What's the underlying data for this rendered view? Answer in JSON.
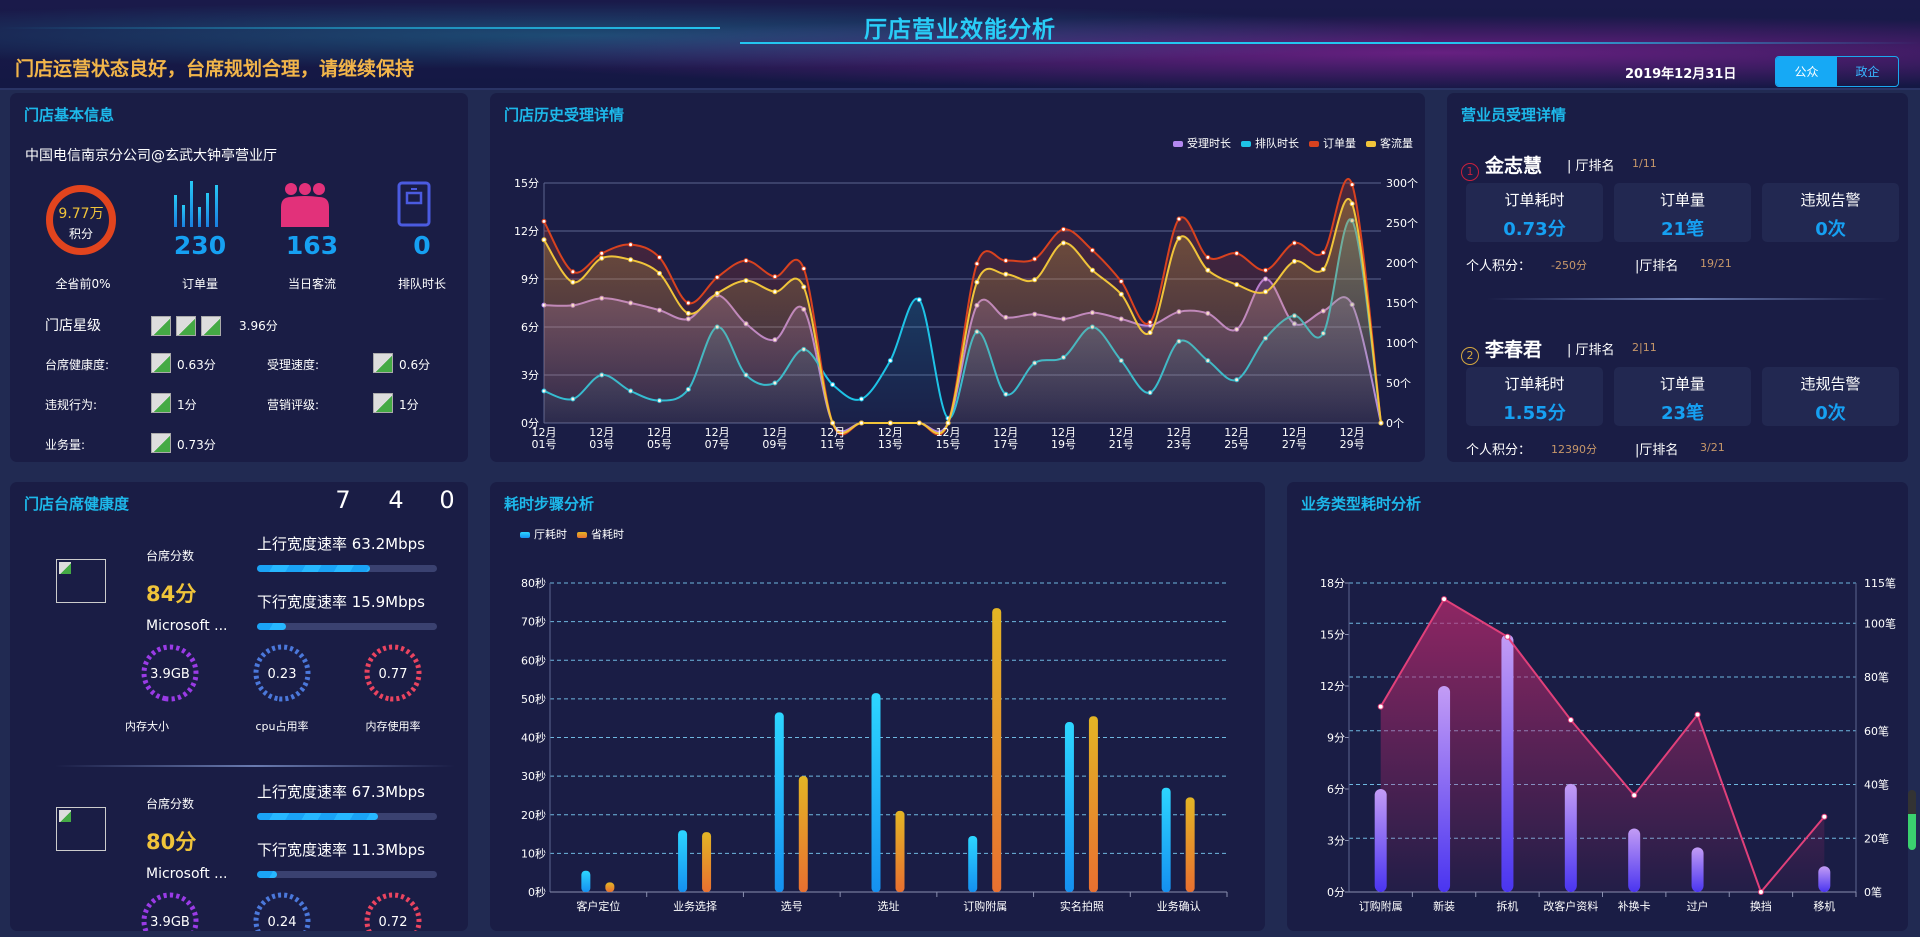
{
  "header": {
    "title": "厅店营业效能分析",
    "subtitle": "门店运营状态良好，台席规划合理，请继续保持",
    "date": "2019年12月31日",
    "toggle": [
      {
        "label": "公众",
        "active": true
      },
      {
        "label": "政企",
        "active": false
      }
    ]
  },
  "store_info": {
    "title": "门店基本信息",
    "store_name": "中国电信南京分公司@玄武大钟亭营业厅",
    "score": {
      "value": "9.77万",
      "unit": "积分",
      "caption": "全省前0%"
    },
    "stats": [
      {
        "icon": "bar-chart-icon",
        "value": "230",
        "label": "订单量"
      },
      {
        "icon": "people-icon",
        "value": "163",
        "label": "当日客流"
      },
      {
        "icon": "queue-device-icon",
        "value": "0",
        "label": "排队时长"
      }
    ],
    "star_label": "门店星级",
    "star_score": "3.96分",
    "metrics": [
      {
        "label": "台席健康度:",
        "value": "0.63分"
      },
      {
        "label": "受理速度:",
        "value": "0.6分"
      },
      {
        "label": "违规行为:",
        "value": "1分"
      },
      {
        "label": "营销评级:",
        "value": "1分"
      },
      {
        "label": "业务量:",
        "value": "0.73分"
      }
    ]
  },
  "history": {
    "title": "门店历史受理详情"
  },
  "staff": {
    "title": "营业员受理详情",
    "people": [
      {
        "rank": "1",
        "name": "金志慧",
        "rank_label": "| 厅排名",
        "rank_value": "1/11",
        "cards": [
          {
            "label": "订单耗时",
            "value": "0.73分"
          },
          {
            "label": "订单量",
            "value": "21笔"
          },
          {
            "label": "违规告警",
            "value": "0次"
          }
        ],
        "score_label": "个人积分：",
        "score": "-250分",
        "hall_rank_label": "|厅排名",
        "hall_rank": "19/21"
      },
      {
        "rank": "2",
        "name": "李春君",
        "rank_label": "| 厅排名",
        "rank_value": "2|11",
        "cards": [
          {
            "label": "订单耗时",
            "value": "1.55分"
          },
          {
            "label": "订单量",
            "value": "23笔"
          },
          {
            "label": "违规告警",
            "value": "0次"
          }
        ],
        "score_label": "个人积分：",
        "score": "12390分",
        "hall_rank_label": "|厅排名",
        "hall_rank": "3/21"
      }
    ]
  },
  "seat_health": {
    "title": "门店台席健康度",
    "counters": [
      "7",
      "4",
      "0"
    ],
    "seats": [
      {
        "score_label": "台席分数",
        "score": "84分",
        "name": "Microsoft ...",
        "up_label": "上行宽度速率 63.2Mbps",
        "up_pct": 63,
        "down_label": "下行宽度速率 15.9Mbps",
        "down_pct": 16,
        "gauges": [
          {
            "value": "3.9GB",
            "label": "内存大小",
            "fill": 0.95,
            "color": "#9a3be6"
          },
          {
            "value": "0.23",
            "label": "cpu占用率",
            "fill": 0.9,
            "color": "#4b78db"
          },
          {
            "value": "0.77",
            "label": "内存使用率",
            "fill": 0.9,
            "color": "#ea4460"
          }
        ]
      },
      {
        "score_label": "台席分数",
        "score": "80分",
        "name": "Microsoft ...",
        "up_label": "上行宽度速率 67.3Mbps",
        "up_pct": 67,
        "down_label": "下行宽度速率 11.3Mbps",
        "down_pct": 11,
        "gauges": [
          {
            "value": "3.9GB",
            "label": "内存大小",
            "fill": 0.95,
            "color": "#9a3be6"
          },
          {
            "value": "0.24",
            "label": "cpu占用率",
            "fill": 0.9,
            "color": "#4b78db"
          },
          {
            "value": "0.72",
            "label": "内存使用率",
            "fill": 0.9,
            "color": "#ea4460"
          }
        ]
      }
    ]
  },
  "steps": {
    "title": "耗时步骤分析"
  },
  "biz": {
    "title": "业务类型耗时分析"
  },
  "chart_data": [
    {
      "type": "line",
      "title": "门店历史受理详情",
      "x": [
        1,
        2,
        3,
        4,
        5,
        6,
        7,
        8,
        9,
        10,
        11,
        12,
        13,
        14,
        15,
        16,
        17,
        18,
        19,
        20,
        21,
        22,
        23,
        24,
        25,
        26,
        27,
        28,
        29,
        30
      ],
      "tick_labels": [
        "12月01号",
        "12月03号",
        "12月05号",
        "12月07号",
        "12月09号",
        "12月11号",
        "12月13号",
        "12月15号",
        "12月17号",
        "12月19号",
        "12月21号",
        "12月23号",
        "12月25号",
        "12月27号",
        "12月29号"
      ],
      "y_left": {
        "ticks": [
          "0分",
          "3分",
          "6分",
          "9分",
          "12分",
          "15分"
        ],
        "range": [
          0,
          15
        ]
      },
      "y_right": {
        "ticks": [
          "0个",
          "50个",
          "100个",
          "150个",
          "200个",
          "250个",
          "300个"
        ],
        "range": [
          0,
          300
        ]
      },
      "series": [
        {
          "name": "受理时长",
          "axis": "left",
          "color": "#b388f0",
          "values": [
            7.37,
            7.35,
            7.8,
            7.5,
            7.05,
            6.5,
            8.0,
            6.2,
            5.2,
            7.1,
            0,
            0,
            0,
            0,
            0,
            7.35,
            6.6,
            6.8,
            6.5,
            6.9,
            6.5,
            6.1,
            6.95,
            6.85,
            5.85,
            9.0,
            6.2,
            7.0,
            7.4,
            0
          ]
        },
        {
          "name": "排队时长",
          "axis": "left",
          "color": "#1ec3e6",
          "values": [
            2.0,
            1.5,
            3.0,
            2.0,
            1.4,
            2.1,
            6.0,
            3.0,
            2.5,
            4.6,
            2.4,
            1.5,
            3.9,
            7.7,
            0.3,
            5.7,
            1.8,
            3.75,
            4.1,
            6.0,
            3.9,
            1.9,
            5.1,
            3.9,
            2.7,
            5.3,
            6.7,
            5.6,
            12.65,
            0
          ]
        },
        {
          "name": "订单量",
          "axis": "right",
          "color": "#d8421f",
          "values": [
            252,
            189,
            212,
            223,
            207,
            150,
            182,
            203,
            183,
            193,
            0,
            0,
            0,
            0,
            0,
            199,
            203,
            205,
            242,
            216,
            177,
            126,
            255,
            207,
            212,
            191,
            225,
            213,
            298,
            0
          ]
        },
        {
          "name": "客流量",
          "axis": "right",
          "color": "#f0c43a",
          "values": [
            229,
            176,
            206,
            204,
            187,
            137,
            162,
            178,
            164,
            170,
            0,
            0,
            0,
            0,
            0,
            176,
            186,
            179,
            225,
            191,
            161,
            113,
            231,
            191,
            173,
            164,
            202,
            192,
            274,
            0
          ]
        }
      ]
    },
    {
      "type": "bar",
      "title": "耗时步骤分析",
      "categories": [
        "客户定位",
        "业务选择",
        "选号",
        "选址",
        "订购附属",
        "实名拍照",
        "业务确认"
      ],
      "y": {
        "ticks": [
          "0秒",
          "10秒",
          "20秒",
          "30秒",
          "40秒",
          "50秒",
          "60秒",
          "70秒",
          "80秒"
        ],
        "range": [
          0,
          80
        ]
      },
      "legend": "top-left",
      "series": [
        {
          "name": "厅耗时",
          "color": "#1ea6f5",
          "values": [
            5.5,
            16,
            46.5,
            51.5,
            14.5,
            44,
            27
          ]
        },
        {
          "name": "省耗时",
          "color": "#e3a427",
          "values": [
            2.5,
            15.5,
            30,
            21,
            73.5,
            45.5,
            24.5
          ]
        }
      ]
    },
    {
      "type": "bar+line",
      "title": "业务类型耗时分析",
      "categories": [
        "订购附属",
        "新装",
        "拆机",
        "改客户资料",
        "补换卡",
        "过户",
        "换挡",
        "移机"
      ],
      "y_left": {
        "ticks": [
          "0分",
          "3分",
          "6分",
          "9分",
          "12分",
          "15分",
          "18分"
        ],
        "range": [
          0,
          18
        ]
      },
      "y_right": {
        "ticks": [
          "0笔",
          "20笔",
          "40笔",
          "60笔",
          "80笔",
          "100笔",
          "115笔"
        ],
        "range": [
          0,
          115
        ]
      },
      "series": [
        {
          "name": "耗时",
          "type": "bar",
          "axis": "left",
          "color": "#8a6df5",
          "values": [
            6.0,
            12.0,
            15.0,
            6.3,
            3.7,
            2.6,
            0,
            1.5
          ]
        },
        {
          "name": "笔数",
          "type": "line",
          "axis": "right",
          "color": "#e0407a",
          "values": [
            69,
            109,
            95,
            64,
            36,
            66,
            0,
            28
          ]
        }
      ]
    }
  ]
}
